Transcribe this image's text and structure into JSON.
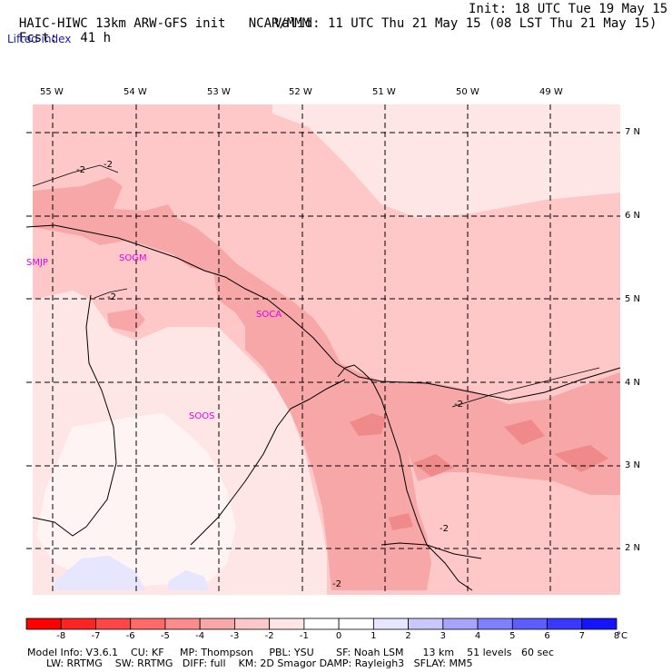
{
  "header": {
    "model_title": "HAIC-HIWC 13km ARW-GFS init",
    "org": "NCAR/MMM",
    "init": "Init: 18 UTC Tue 19 May 15",
    "fcst_label": "Fcst:",
    "fcst_value": "41 h",
    "valid": "Valid: 11 UTC Thu 21 May 15 (08 LST Thu 21 May 15)",
    "field": "Lifted index"
  },
  "map": {
    "lon_labels": [
      "55 W",
      "54 W",
      "53 W",
      "52 W",
      "51 W",
      "50 W",
      "49 W"
    ],
    "lat_labels": [
      "7 N",
      "6 N",
      "5 N",
      "4 N",
      "3 N",
      "2 N"
    ],
    "stations": [
      "SMJP",
      "SOGM",
      "SOCA",
      "SOOS"
    ],
    "contour_labels": [
      "-2",
      "-2",
      "-2",
      "-2",
      "-2",
      "-2"
    ],
    "colors": {
      "level_neg3": "#f7a7a7",
      "level_neg2": "#ffc8c8",
      "level_neg1": "#ffe6e6",
      "level_0": "#ffffff",
      "level_1": "#e6e6ff",
      "station": "#e600e6",
      "outside": "#ffffff"
    }
  },
  "colorbar": {
    "labels": [
      "-8",
      "-7",
      "-6",
      "-5",
      "-4",
      "-3",
      "-2",
      "-1",
      "0",
      "1",
      "2",
      "3",
      "4",
      "5",
      "6",
      "7",
      "8",
      "°C"
    ],
    "colors": [
      "#ff0000",
      "#ff2323",
      "#ff4646",
      "#ff6969",
      "#ff8c8c",
      "#f7a7a7",
      "#ffc8c8",
      "#ffe6e6",
      "#ffffff",
      "#ffffff",
      "#e6e6ff",
      "#c8c8ff",
      "#a5a5ff",
      "#8080ff",
      "#5c5cff",
      "#3838ff",
      "#1414ff",
      "#0000e6"
    ]
  },
  "footer": {
    "line1": "Model Info: V3.6.1    CU: KF     MP: Thompson     PBL: YSU       SF: Noah LSM      13 km    51 levels   60 sec",
    "line2": "      LW: RRTMG    SW: RRTMG   DIFF: full    KM: 2D Smagor DAMP: Rayleigh3   SFLAY: MM5"
  }
}
